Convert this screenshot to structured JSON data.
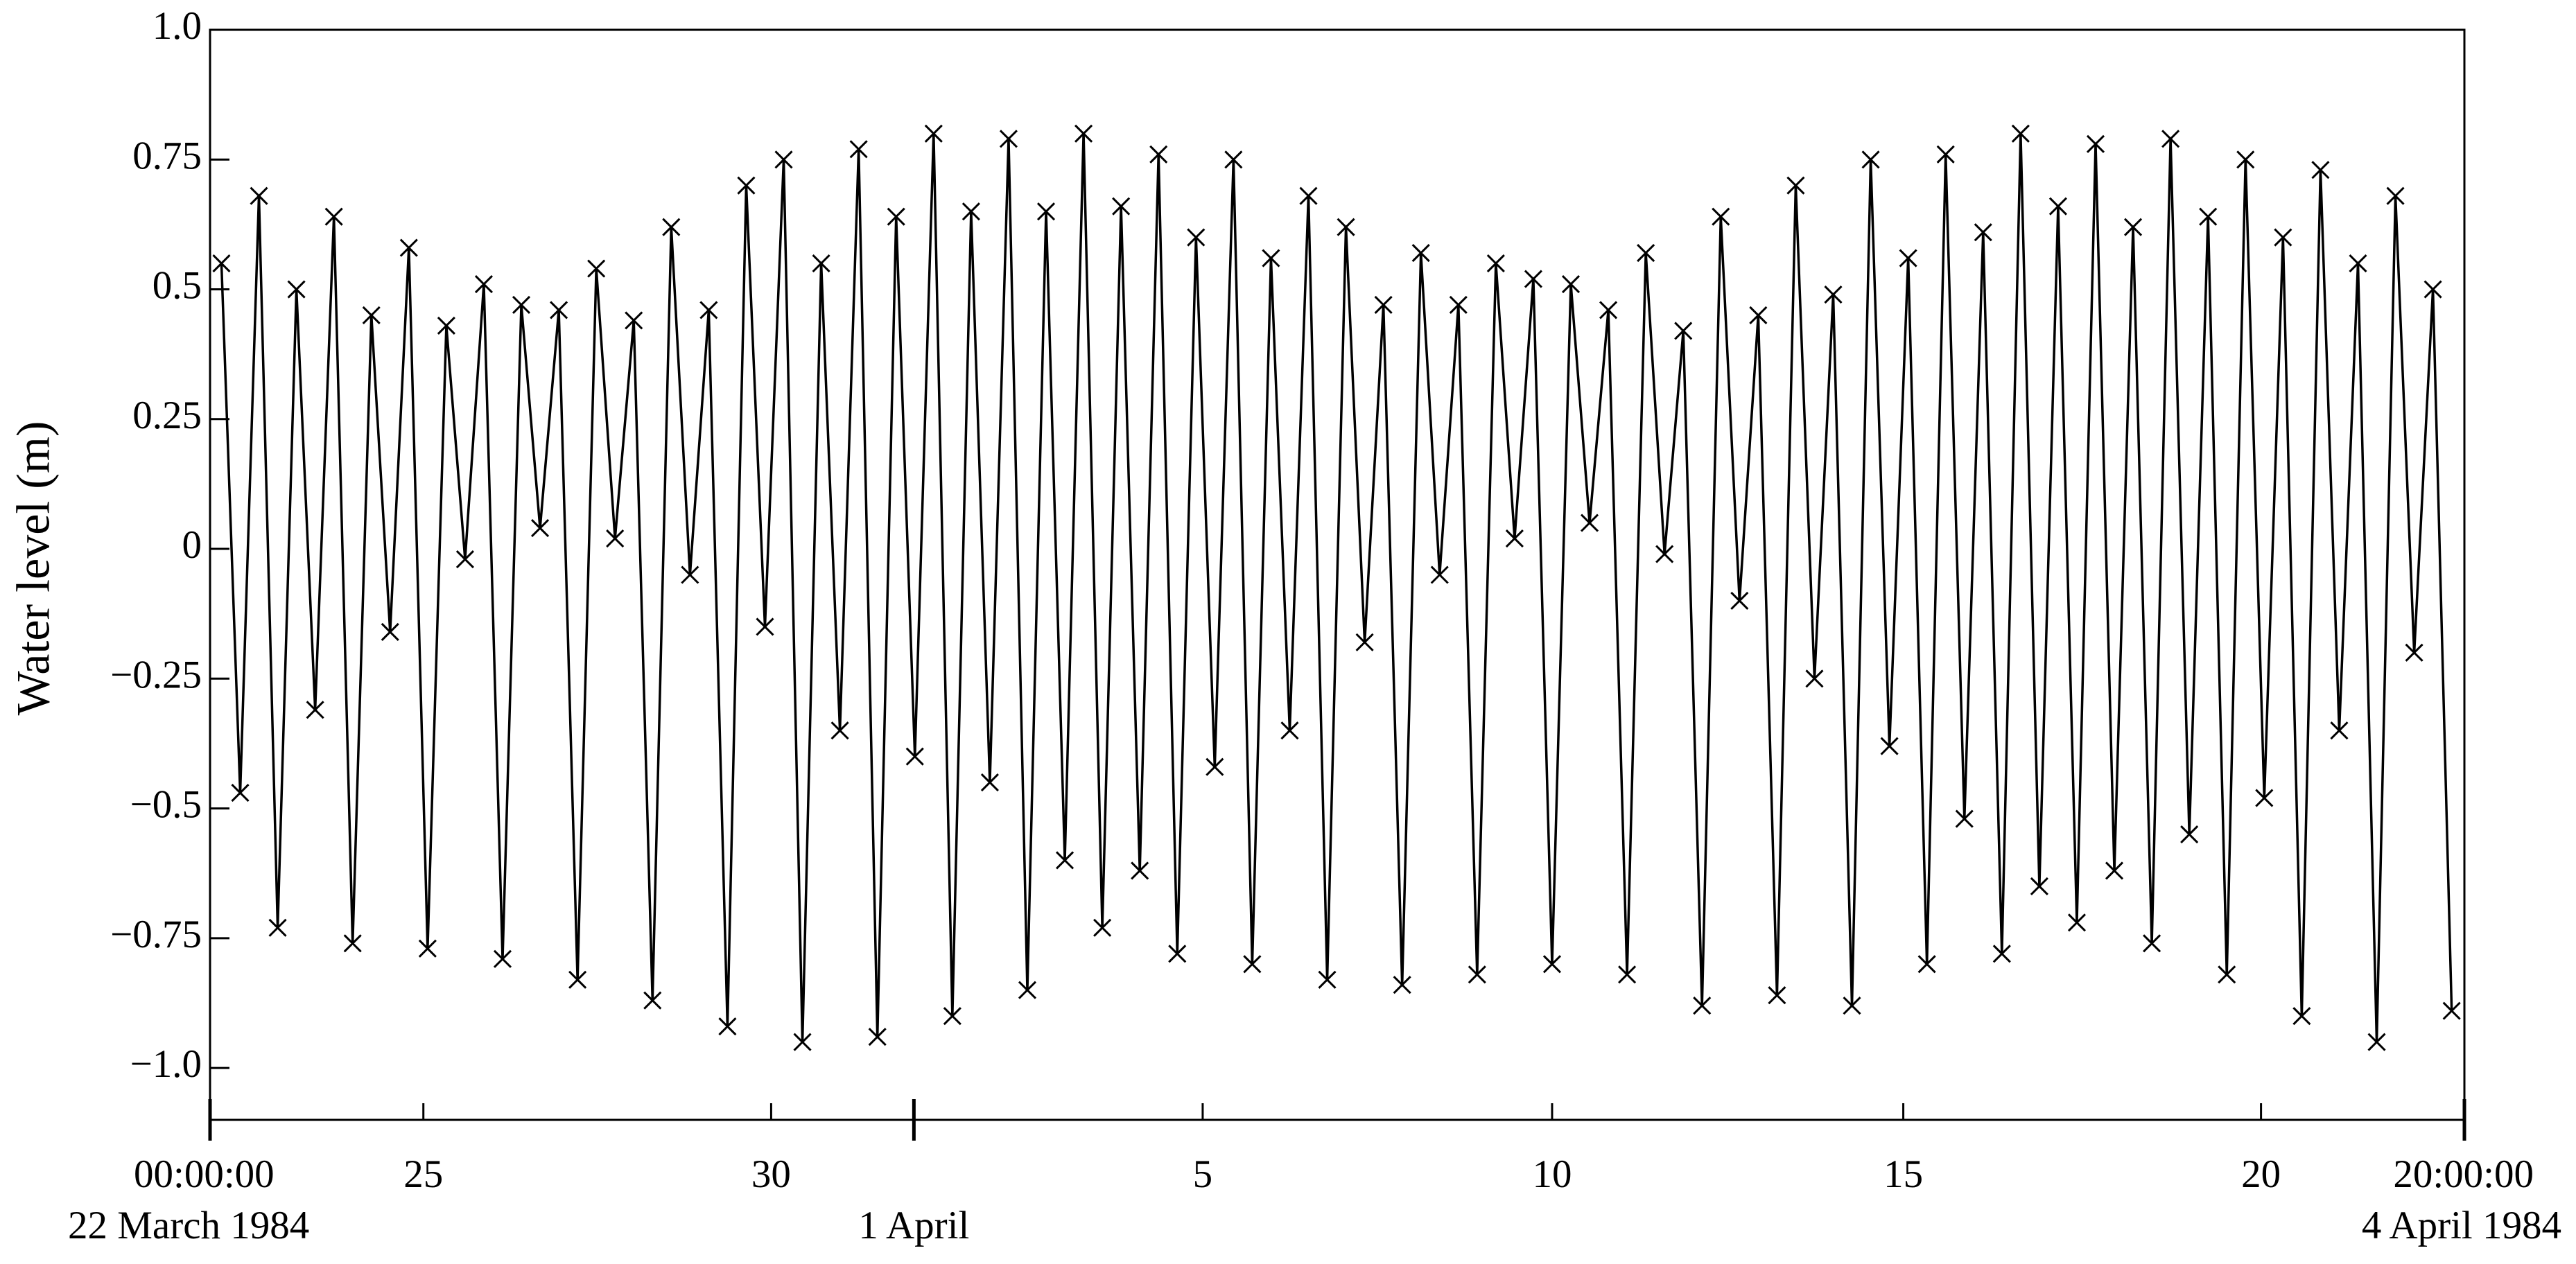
{
  "chart_data": {
    "type": "line",
    "y_label": "Water level (m)",
    "xlim": [
      0,
      13.833
    ],
    "ylim": [
      -1.1,
      1
    ],
    "yticks": [
      {
        "value": 1,
        "label": "1.0"
      },
      0.75,
      0.5,
      0.25,
      0,
      {
        "value": -0.25,
        "label": "−0.25"
      },
      {
        "value": -0.5,
        "label": "−0.5"
      },
      {
        "value": -0.75,
        "label": "−0.75"
      },
      {
        "value": -1,
        "label": "−1.0"
      }
    ],
    "xticks": [
      {
        "value": 0,
        "label": "00:00:00"
      },
      {
        "value": 1.309,
        "label": "25"
      },
      {
        "value": 3.443,
        "label": "30"
      },
      {
        "value": 6.091,
        "label": "5"
      },
      {
        "value": 8.235,
        "label": "10"
      },
      {
        "value": 10.39,
        "label": "15"
      },
      {
        "value": 12.585,
        "label": "20"
      },
      {
        "value": 13.833,
        "label": "20:00:00"
      }
    ],
    "date_labels": [
      {
        "value": 0,
        "label": "22 March 1984"
      },
      {
        "value": 4.319,
        "label": "1 April"
      },
      {
        "value": 13.833,
        "label": "4 April 1984"
      }
    ],
    "x": [
      0.07,
      0.185,
      0.3,
      0.415,
      0.53,
      0.645,
      0.76,
      0.875,
      0.99,
      1.105,
      1.22,
      1.335,
      1.45,
      1.565,
      1.68,
      1.795,
      1.91,
      2.025,
      2.14,
      2.255,
      2.37,
      2.485,
      2.6,
      2.715,
      2.83,
      2.945,
      3.06,
      3.175,
      3.29,
      3.405,
      3.52,
      3.635,
      3.75,
      3.865,
      3.98,
      4.095,
      4.21,
      4.325,
      4.44,
      4.555,
      4.67,
      4.785,
      4.9,
      5.015,
      5.13,
      5.245,
      5.36,
      5.475,
      5.59,
      5.705,
      5.82,
      5.935,
      6.05,
      6.165,
      6.28,
      6.395,
      6.51,
      6.625,
      6.74,
      6.855,
      6.97,
      7.085,
      7.2,
      7.315,
      7.43,
      7.545,
      7.66,
      7.775,
      7.89,
      8.005,
      8.12,
      8.235,
      8.35,
      8.465,
      8.58,
      8.695,
      8.81,
      8.925,
      9.04,
      9.155,
      9.27,
      9.385,
      9.5,
      9.615,
      9.73,
      9.845,
      9.96,
      10.075,
      10.19,
      10.305,
      10.42,
      10.535,
      10.65,
      10.765,
      10.88,
      10.995,
      11.11,
      11.225,
      11.34,
      11.455,
      11.57,
      11.685,
      11.8,
      11.915,
      12.03,
      12.145,
      12.26,
      12.375,
      12.49,
      12.605,
      12.72,
      12.835,
      12.95,
      13.065,
      13.18,
      13.295,
      13.41,
      13.525,
      13.64,
      13.755
    ],
    "series": [
      {
        "color": "#000000",
        "marker": "x",
        "values": [
          0.55,
          -0.47,
          0.68,
          -0.73,
          0.5,
          -0.31,
          0.64,
          -0.76,
          0.45,
          -0.16,
          0.58,
          -0.77,
          0.43,
          -0.02,
          0.51,
          -0.79,
          0.47,
          0.04,
          0.46,
          -0.83,
          0.54,
          0.02,
          0.44,
          -0.87,
          0.62,
          -0.05,
          0.46,
          -0.92,
          0.7,
          -0.15,
          0.75,
          -0.95,
          0.55,
          -0.35,
          0.77,
          -0.94,
          0.64,
          -0.4,
          0.8,
          -0.9,
          0.65,
          -0.45,
          0.79,
          -0.85,
          0.65,
          -0.6,
          0.8,
          -0.73,
          0.66,
          -0.62,
          0.76,
          -0.78,
          0.6,
          -0.42,
          0.75,
          -0.8,
          0.56,
          -0.35,
          0.68,
          -0.83,
          0.62,
          -0.18,
          0.47,
          -0.84,
          0.57,
          -0.05,
          0.47,
          -0.82,
          0.55,
          0.02,
          0.52,
          -0.8,
          0.51,
          0.05,
          0.46,
          -0.82,
          0.57,
          -0.01,
          0.42,
          -0.88,
          0.64,
          -0.1,
          0.45,
          -0.86,
          0.7,
          -0.25,
          0.49,
          -0.88,
          0.75,
          -0.38,
          0.56,
          -0.8,
          0.76,
          -0.52,
          0.61,
          -0.78,
          0.8,
          -0.65,
          0.66,
          -0.72,
          0.78,
          -0.62,
          0.62,
          -0.76,
          0.79,
          -0.55,
          0.64,
          -0.82,
          0.75,
          -0.48,
          0.6,
          -0.9,
          0.73,
          -0.35,
          0.55,
          -0.95,
          0.68,
          -0.2,
          0.5,
          -0.89
        ]
      }
    ]
  }
}
